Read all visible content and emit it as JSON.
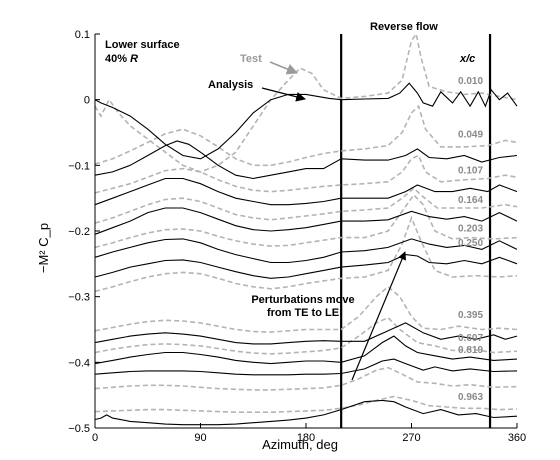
{
  "chart_data": {
    "type": "line",
    "xlabel": "Azimuth, deg",
    "ylabel": "−M² C_p",
    "xlim": [
      0,
      360
    ],
    "ylim": [
      -0.5,
      0.1
    ],
    "xticks": [
      0,
      90,
      180,
      270,
      360
    ],
    "yticks": [
      0.1,
      0,
      -0.1,
      -0.2,
      -0.3,
      -0.4,
      -0.5
    ],
    "reverse_flow_bounds": [
      210,
      337
    ],
    "annotations": {
      "surface_line1": "Lower surface",
      "surface_line2_prefix": "40% ",
      "surface_line2_italic": "R",
      "reverse_flow": "Reverse flow",
      "test": "Test",
      "analysis": "Analysis",
      "perturb_line1": "Perturbations move",
      "perturb_line2": "from TE to LE",
      "xc_header": "x/c"
    },
    "xc_labels": [
      "0.010",
      "0.049",
      "0.107",
      "0.164",
      "0.203",
      "0.250",
      "0.395",
      "0.607",
      "0.819",
      "0.963"
    ],
    "series": [
      {
        "x": [
          0,
          5,
          15,
          30,
          45,
          60,
          75,
          90,
          105,
          120,
          135,
          150,
          165,
          180,
          190,
          200,
          210,
          230,
          250,
          260,
          268,
          275,
          280,
          288,
          295,
          305,
          312,
          320,
          327,
          333,
          338,
          345,
          352,
          360
        ],
        "y": [
          0.0,
          -0.005,
          -0.012,
          -0.025,
          -0.045,
          -0.068,
          -0.085,
          -0.09,
          -0.075,
          -0.05,
          -0.02,
          0.0,
          0.008,
          0.008,
          0.005,
          0.002,
          0.0,
          0.001,
          0.002,
          0.01,
          0.025,
          0.01,
          -0.005,
          -0.01,
          0.012,
          -0.005,
          0.012,
          -0.01,
          0.012,
          -0.01,
          0.015,
          0.0,
          0.01,
          -0.01
        ]
      },
      {
        "x": [
          0,
          15,
          30,
          45,
          60,
          70,
          80,
          90,
          105,
          120,
          135,
          150,
          165,
          180,
          195,
          210,
          230,
          250,
          265,
          275,
          285,
          300,
          315,
          330,
          345,
          360
        ],
        "y": [
          -0.115,
          -0.11,
          -0.1,
          -0.085,
          -0.07,
          -0.063,
          -0.068,
          -0.08,
          -0.1,
          -0.115,
          -0.12,
          -0.115,
          -0.11,
          -0.105,
          -0.105,
          -0.09,
          -0.092,
          -0.092,
          -0.085,
          -0.075,
          -0.088,
          -0.09,
          -0.085,
          -0.095,
          -0.088,
          -0.085
        ]
      },
      {
        "x": [
          0,
          15,
          30,
          45,
          60,
          75,
          90,
          105,
          120,
          135,
          150,
          165,
          180,
          195,
          210,
          230,
          250,
          265,
          275,
          290,
          305,
          320,
          335,
          345,
          360
        ],
        "y": [
          -0.16,
          -0.15,
          -0.14,
          -0.13,
          -0.12,
          -0.12,
          -0.128,
          -0.14,
          -0.15,
          -0.155,
          -0.16,
          -0.16,
          -0.158,
          -0.155,
          -0.15,
          -0.15,
          -0.15,
          -0.14,
          -0.13,
          -0.14,
          -0.14,
          -0.135,
          -0.14,
          -0.13,
          -0.14
        ]
      },
      {
        "x": [
          0,
          15,
          30,
          45,
          60,
          75,
          90,
          105,
          120,
          135,
          150,
          165,
          180,
          195,
          210,
          230,
          250,
          270,
          285,
          300,
          315,
          330,
          345,
          360
        ],
        "y": [
          -0.205,
          -0.195,
          -0.185,
          -0.172,
          -0.165,
          -0.165,
          -0.172,
          -0.182,
          -0.192,
          -0.198,
          -0.2,
          -0.198,
          -0.195,
          -0.19,
          -0.185,
          -0.185,
          -0.183,
          -0.17,
          -0.178,
          -0.182,
          -0.178,
          -0.185,
          -0.172,
          -0.185
        ]
      },
      {
        "x": [
          0,
          15,
          30,
          45,
          60,
          75,
          90,
          105,
          120,
          135,
          150,
          165,
          180,
          195,
          210,
          230,
          250,
          270,
          285,
          300,
          315,
          330,
          345,
          360
        ],
        "y": [
          -0.24,
          -0.232,
          -0.225,
          -0.218,
          -0.213,
          -0.212,
          -0.218,
          -0.228,
          -0.236,
          -0.242,
          -0.248,
          -0.248,
          -0.245,
          -0.24,
          -0.232,
          -0.23,
          -0.225,
          -0.212,
          -0.22,
          -0.225,
          -0.222,
          -0.228,
          -0.215,
          -0.228
        ]
      },
      {
        "x": [
          0,
          15,
          30,
          45,
          60,
          75,
          90,
          105,
          120,
          135,
          150,
          165,
          180,
          195,
          210,
          230,
          250,
          265,
          275,
          285,
          300,
          315,
          330,
          345,
          360
        ],
        "y": [
          -0.27,
          -0.263,
          -0.255,
          -0.25,
          -0.245,
          -0.244,
          -0.248,
          -0.255,
          -0.262,
          -0.268,
          -0.272,
          -0.27,
          -0.265,
          -0.26,
          -0.255,
          -0.252,
          -0.248,
          -0.236,
          -0.238,
          -0.248,
          -0.25,
          -0.245,
          -0.25,
          -0.24,
          -0.25
        ]
      },
      {
        "x": [
          0,
          15,
          30,
          45,
          60,
          75,
          90,
          105,
          120,
          135,
          150,
          165,
          180,
          195,
          210,
          230,
          250,
          265,
          280,
          295,
          310,
          325,
          340,
          350,
          360
        ],
        "y": [
          -0.37,
          -0.365,
          -0.36,
          -0.357,
          -0.355,
          -0.357,
          -0.36,
          -0.365,
          -0.37,
          -0.372,
          -0.372,
          -0.37,
          -0.368,
          -0.367,
          -0.368,
          -0.368,
          -0.352,
          -0.34,
          -0.355,
          -0.365,
          -0.36,
          -0.365,
          -0.358,
          -0.365,
          -0.36
        ]
      },
      {
        "x": [
          0,
          15,
          30,
          45,
          60,
          75,
          90,
          105,
          120,
          135,
          150,
          165,
          180,
          195,
          210,
          230,
          245,
          255,
          265,
          275,
          290,
          305,
          320,
          340,
          360
        ],
        "y": [
          -0.402,
          -0.397,
          -0.392,
          -0.388,
          -0.385,
          -0.385,
          -0.388,
          -0.392,
          -0.397,
          -0.4,
          -0.402,
          -0.4,
          -0.398,
          -0.398,
          -0.4,
          -0.39,
          -0.37,
          -0.36,
          -0.375,
          -0.385,
          -0.39,
          -0.395,
          -0.392,
          -0.397,
          -0.395
        ]
      },
      {
        "x": [
          0,
          15,
          30,
          45,
          60,
          75,
          90,
          105,
          120,
          135,
          150,
          165,
          180,
          195,
          210,
          230,
          245,
          255,
          265,
          280,
          290,
          305,
          320,
          340,
          360
        ],
        "y": [
          -0.418,
          -0.416,
          -0.414,
          -0.413,
          -0.413,
          -0.413,
          -0.414,
          -0.416,
          -0.418,
          -0.419,
          -0.419,
          -0.419,
          -0.418,
          -0.418,
          -0.417,
          -0.41,
          -0.398,
          -0.395,
          -0.402,
          -0.412,
          -0.407,
          -0.413,
          -0.41,
          -0.414,
          -0.413
        ]
      },
      {
        "x": [
          0,
          5,
          10,
          15,
          30,
          45,
          60,
          75,
          90,
          105,
          120,
          135,
          150,
          165,
          180,
          195,
          210,
          230,
          245,
          255,
          265,
          280,
          295,
          310,
          325,
          340,
          360
        ],
        "y": [
          -0.487,
          -0.485,
          -0.48,
          -0.485,
          -0.49,
          -0.492,
          -0.494,
          -0.495,
          -0.495,
          -0.495,
          -0.494,
          -0.492,
          -0.49,
          -0.488,
          -0.485,
          -0.48,
          -0.472,
          -0.46,
          -0.458,
          -0.46,
          -0.468,
          -0.478,
          -0.472,
          -0.48,
          -0.478,
          -0.484,
          -0.482
        ]
      }
    ],
    "test_series": [
      {
        "x": [
          0,
          5,
          12,
          20,
          30,
          45,
          60,
          75,
          90,
          105,
          120,
          135,
          150,
          165,
          175,
          185,
          195,
          210,
          230,
          250,
          262,
          270,
          274,
          278,
          285,
          300,
          315,
          330,
          345,
          360
        ],
        "y": [
          -0.01,
          -0.025,
          0.0,
          -0.02,
          -0.04,
          -0.06,
          -0.08,
          -0.1,
          -0.11,
          -0.1,
          -0.08,
          -0.04,
          0.0,
          0.03,
          0.048,
          0.04,
          0.015,
          0.002,
          0.005,
          0.01,
          0.03,
          0.09,
          0.1,
          0.065,
          0.02,
          0.012,
          0.008,
          0.01,
          0.005,
          0.0
        ]
      },
      {
        "x": [
          0,
          15,
          30,
          45,
          60,
          75,
          90,
          105,
          120,
          135,
          150,
          165,
          180,
          195,
          210,
          230,
          250,
          262,
          270,
          276,
          282,
          295,
          315,
          335,
          350,
          360
        ],
        "y": [
          -0.098,
          -0.09,
          -0.078,
          -0.065,
          -0.052,
          -0.045,
          -0.055,
          -0.072,
          -0.09,
          -0.1,
          -0.1,
          -0.095,
          -0.088,
          -0.082,
          -0.078,
          -0.075,
          -0.07,
          -0.05,
          -0.02,
          -0.01,
          -0.045,
          -0.072,
          -0.072,
          -0.07,
          -0.062,
          -0.065
        ]
      },
      {
        "x": [
          0,
          15,
          30,
          45,
          60,
          75,
          90,
          105,
          120,
          135,
          150,
          165,
          180,
          195,
          210,
          230,
          250,
          262,
          270,
          276,
          282,
          295,
          315,
          335,
          350,
          360
        ],
        "y": [
          -0.142,
          -0.135,
          -0.128,
          -0.118,
          -0.108,
          -0.105,
          -0.11,
          -0.122,
          -0.132,
          -0.138,
          -0.14,
          -0.138,
          -0.135,
          -0.132,
          -0.13,
          -0.128,
          -0.125,
          -0.11,
          -0.09,
          -0.085,
          -0.11,
          -0.125,
          -0.122,
          -0.12,
          -0.115,
          -0.118
        ]
      },
      {
        "x": [
          0,
          15,
          30,
          45,
          60,
          75,
          90,
          105,
          120,
          135,
          150,
          165,
          180,
          195,
          210,
          230,
          250,
          262,
          272,
          280,
          292,
          310,
          330,
          350,
          360
        ],
        "y": [
          -0.188,
          -0.18,
          -0.17,
          -0.16,
          -0.152,
          -0.15,
          -0.155,
          -0.165,
          -0.175,
          -0.18,
          -0.183,
          -0.18,
          -0.177,
          -0.174,
          -0.17,
          -0.168,
          -0.165,
          -0.15,
          -0.135,
          -0.148,
          -0.165,
          -0.165,
          -0.165,
          -0.16,
          -0.163
        ]
      },
      {
        "x": [
          0,
          15,
          30,
          45,
          60,
          75,
          90,
          105,
          120,
          135,
          150,
          165,
          180,
          195,
          210,
          230,
          250,
          262,
          272,
          280,
          290,
          305,
          320,
          340,
          360
        ],
        "y": [
          -0.225,
          -0.218,
          -0.21,
          -0.203,
          -0.198,
          -0.197,
          -0.2,
          -0.208,
          -0.215,
          -0.22,
          -0.223,
          -0.222,
          -0.218,
          -0.214,
          -0.21,
          -0.21,
          -0.2,
          -0.17,
          -0.145,
          -0.16,
          -0.2,
          -0.212,
          -0.21,
          -0.212,
          -0.21
        ]
      },
      {
        "x": [
          0,
          15,
          30,
          45,
          60,
          75,
          90,
          105,
          120,
          135,
          150,
          165,
          180,
          195,
          210,
          230,
          250,
          262,
          270,
          278,
          290,
          305,
          325,
          345,
          360
        ],
        "y": [
          -0.292,
          -0.285,
          -0.277,
          -0.27,
          -0.265,
          -0.263,
          -0.265,
          -0.272,
          -0.28,
          -0.285,
          -0.288,
          -0.285,
          -0.28,
          -0.276,
          -0.272,
          -0.27,
          -0.26,
          -0.22,
          -0.18,
          -0.215,
          -0.26,
          -0.27,
          -0.268,
          -0.27,
          -0.268
        ]
      },
      {
        "x": [
          0,
          15,
          30,
          45,
          60,
          75,
          90,
          105,
          120,
          135,
          150,
          165,
          180,
          195,
          210,
          225,
          240,
          250,
          260,
          270,
          280,
          295,
          310,
          330,
          345,
          360
        ],
        "y": [
          -0.352,
          -0.347,
          -0.342,
          -0.338,
          -0.336,
          -0.337,
          -0.34,
          -0.345,
          -0.35,
          -0.353,
          -0.354,
          -0.352,
          -0.35,
          -0.35,
          -0.35,
          -0.33,
          -0.3,
          -0.285,
          -0.3,
          -0.33,
          -0.348,
          -0.35,
          -0.345,
          -0.35,
          -0.348,
          -0.35
        ]
      },
      {
        "x": [
          0,
          15,
          30,
          45,
          60,
          75,
          90,
          105,
          120,
          135,
          150,
          165,
          180,
          195,
          210,
          225,
          240,
          250,
          260,
          275,
          290,
          305,
          320,
          340,
          360
        ],
        "y": [
          -0.385,
          -0.38,
          -0.376,
          -0.373,
          -0.372,
          -0.373,
          -0.375,
          -0.379,
          -0.383,
          -0.386,
          -0.387,
          -0.386,
          -0.384,
          -0.382,
          -0.378,
          -0.36,
          -0.34,
          -0.332,
          -0.35,
          -0.37,
          -0.375,
          -0.382,
          -0.38,
          -0.385,
          -0.383
        ]
      },
      {
        "x": [
          0,
          15,
          30,
          45,
          60,
          75,
          90,
          105,
          120,
          135,
          150,
          165,
          180,
          195,
          210,
          225,
          240,
          250,
          262,
          275,
          290,
          305,
          320,
          340,
          360
        ],
        "y": [
          -0.44,
          -0.438,
          -0.436,
          -0.435,
          -0.435,
          -0.436,
          -0.438,
          -0.44,
          -0.441,
          -0.442,
          -0.442,
          -0.441,
          -0.44,
          -0.439,
          -0.435,
          -0.425,
          -0.412,
          -0.408,
          -0.418,
          -0.43,
          -0.432,
          -0.436,
          -0.434,
          -0.438,
          -0.437
        ]
      },
      {
        "x": [
          0,
          15,
          30,
          45,
          60,
          75,
          90,
          105,
          120,
          135,
          150,
          165,
          180,
          195,
          210,
          225,
          240,
          255,
          270,
          285,
          300,
          315,
          330,
          345,
          360
        ],
        "y": [
          -0.475,
          -0.474,
          -0.473,
          -0.472,
          -0.472,
          -0.473,
          -0.474,
          -0.475,
          -0.476,
          -0.476,
          -0.476,
          -0.475,
          -0.474,
          -0.473,
          -0.47,
          -0.465,
          -0.458,
          -0.452,
          -0.458,
          -0.466,
          -0.468,
          -0.47,
          -0.47,
          -0.472,
          -0.471
        ]
      }
    ]
  }
}
